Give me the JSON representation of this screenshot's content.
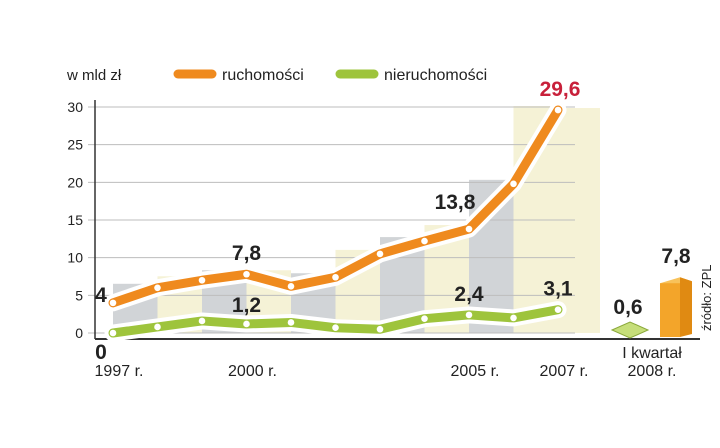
{
  "chart_data": {
    "type": "line",
    "ylabel": "w mld zł",
    "ylim": [
      0,
      30
    ],
    "y_ticks": [
      0,
      5,
      10,
      15,
      20,
      25,
      30
    ],
    "x": [
      1997,
      1998,
      1999,
      2000,
      2001,
      2002,
      2003,
      2004,
      2005,
      2006,
      2007
    ],
    "x_tick_labels": [
      {
        "x": 1997,
        "label": "1997 r."
      },
      {
        "x": 2000,
        "label": "2000 r."
      },
      {
        "x": 2005,
        "label": "2005 r."
      },
      {
        "x": 2007,
        "label": "2007 r."
      }
    ],
    "series": [
      {
        "name": "ruchomości",
        "color": "#ef8a1e",
        "values": [
          4,
          6,
          7,
          7.8,
          6.2,
          7.4,
          10.5,
          12.2,
          13.8,
          19.8,
          29.6
        ],
        "labels": {
          "1997": "4",
          "2000": "7,8",
          "2005": "13,8",
          "2007": "29,6"
        }
      },
      {
        "name": "nieruchomości",
        "color": "#9ec43c",
        "values": [
          0,
          0.8,
          1.6,
          1.2,
          1.4,
          0.7,
          0.5,
          1.9,
          2.4,
          2.0,
          3.1
        ],
        "labels": {
          "1997": "0",
          "2000": "1,2",
          "2005": "2,4",
          "2007": "3,1"
        }
      }
    ],
    "highlight_label_color": "#c8203a",
    "extra_period": {
      "label_top": "I kwartał",
      "label_bottom": "2008 r.",
      "nieruchomosci": {
        "value": 0.6,
        "label": "0,6",
        "color": "#c6de7a"
      },
      "ruchomosci": {
        "value": 7.8,
        "label": "7,8",
        "color": "#f3a52a"
      }
    },
    "source": "źródło: ZPL",
    "grid": true
  }
}
